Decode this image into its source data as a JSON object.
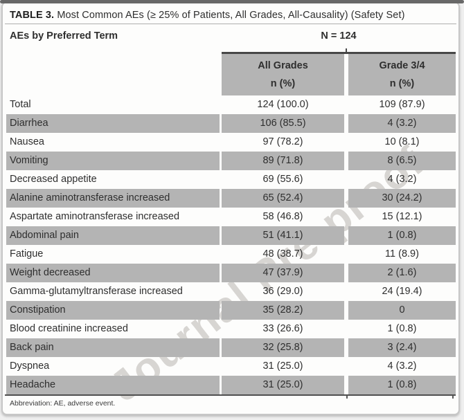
{
  "title": {
    "label": "TABLE 3.",
    "text": " Most Common AEs (≥ 25% of Patients, All Grades, All-Causality) (Safety Set)"
  },
  "table": {
    "row_header": "AEs by Preferred Term",
    "n_label": "N = 124",
    "columns": [
      {
        "title": "All Grades",
        "subtitle": "n (%)"
      },
      {
        "title": "Grade 3/4",
        "subtitle": "n (%)"
      }
    ],
    "rows": [
      {
        "term": "Total",
        "all_grades": "124 (100.0)",
        "grade_3_4": "109 (87.9)"
      },
      {
        "term": "Diarrhea",
        "all_grades": "106 (85.5)",
        "grade_3_4": "4 (3.2)"
      },
      {
        "term": "Nausea",
        "all_grades": "97 (78.2)",
        "grade_3_4": "10 (8.1)"
      },
      {
        "term": "Vomiting",
        "all_grades": "89 (71.8)",
        "grade_3_4": "8 (6.5)"
      },
      {
        "term": "Decreased appetite",
        "all_grades": "69 (55.6)",
        "grade_3_4": "4 (3.2)"
      },
      {
        "term": "Alanine aminotransferase increased",
        "all_grades": "65 (52.4)",
        "grade_3_4": "30 (24.2)"
      },
      {
        "term": "Aspartate aminotransferase increased",
        "all_grades": "58 (46.8)",
        "grade_3_4": "15 (12.1)"
      },
      {
        "term": "Abdominal pain",
        "all_grades": "51 (41.1)",
        "grade_3_4": "1 (0.8)"
      },
      {
        "term": "Fatigue",
        "all_grades": "48 (38.7)",
        "grade_3_4": "11 (8.9)"
      },
      {
        "term": "Weight decreased",
        "all_grades": "47 (37.9)",
        "grade_3_4": "2 (1.6)"
      },
      {
        "term": "Gamma-glutamyltransferase increased",
        "all_grades": "36 (29.0)",
        "grade_3_4": "24 (19.4)"
      },
      {
        "term": "Constipation",
        "all_grades": "35 (28.2)",
        "grade_3_4": "0"
      },
      {
        "term": "Blood creatinine increased",
        "all_grades": "33 (26.6)",
        "grade_3_4": "1 (0.8)"
      },
      {
        "term": "Back pain",
        "all_grades": "32 (25.8)",
        "grade_3_4": "3 (2.4)"
      },
      {
        "term": "Dyspnea",
        "all_grades": "31 (25.0)",
        "grade_3_4": "4 (3.2)"
      },
      {
        "term": "Headache",
        "all_grades": "31 (25.0)",
        "grade_3_4": "1 (0.8)"
      }
    ]
  },
  "footnote": "Abbreviation: AE, adverse event.",
  "watermark": "Journal Pre-proof",
  "colors": {
    "stripe_gray": "#b4b4b4",
    "header_bg": "#b4b4b4",
    "rule_dark": "#474747",
    "border_gray": "#c7c7c7"
  }
}
